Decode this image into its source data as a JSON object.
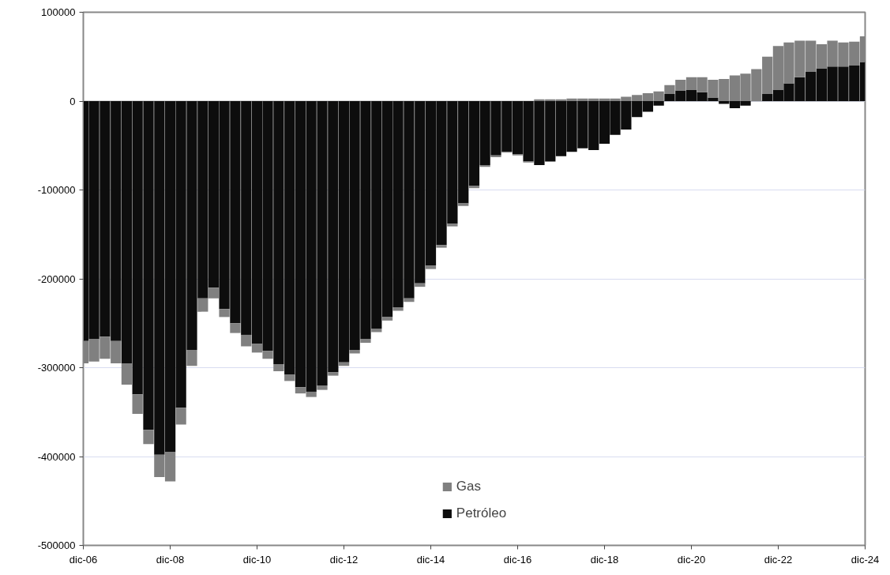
{
  "chart_data": {
    "type": "bar",
    "stacked": true,
    "grid": "y",
    "legend": "bottom",
    "x": [
      "2006-12",
      "2007-03",
      "2007-06",
      "2007-09",
      "2007-12",
      "2008-03",
      "2008-06",
      "2008-09",
      "2008-12",
      "2009-03",
      "2009-06",
      "2009-09",
      "2009-12",
      "2010-03",
      "2010-06",
      "2010-09",
      "2010-12",
      "2011-03",
      "2011-06",
      "2011-09",
      "2011-12",
      "2012-03",
      "2012-06",
      "2012-09",
      "2012-12",
      "2013-03",
      "2013-06",
      "2013-09",
      "2013-12",
      "2014-03",
      "2014-06",
      "2014-09",
      "2014-12",
      "2015-03",
      "2015-06",
      "2015-09",
      "2015-12",
      "2016-03",
      "2016-06",
      "2016-09",
      "2016-12",
      "2017-03",
      "2017-06",
      "2017-09",
      "2017-12",
      "2018-03",
      "2018-06",
      "2018-09",
      "2018-12",
      "2019-03",
      "2019-06",
      "2019-09",
      "2019-12",
      "2020-03",
      "2020-06",
      "2020-09",
      "2020-12",
      "2021-03",
      "2021-06",
      "2021-09",
      "2021-12",
      "2022-03",
      "2022-06",
      "2022-09",
      "2022-12",
      "2023-03",
      "2023-06",
      "2023-09",
      "2023-12",
      "2024-03",
      "2024-06",
      "2024-09",
      "2024-12"
    ],
    "series": [
      {
        "name": "Petróleo",
        "color": "#0d0d0d",
        "values": [
          -270000,
          -268000,
          -265000,
          -270000,
          -295000,
          -330000,
          -370000,
          -398000,
          -395000,
          -345000,
          -280000,
          -222000,
          -210000,
          -234000,
          -250000,
          -263000,
          -273000,
          -281000,
          -296000,
          -308000,
          -322000,
          -327000,
          -320000,
          -305000,
          -294000,
          -280000,
          -268000,
          -256000,
          -243000,
          -232000,
          -222000,
          -205000,
          -185000,
          -162000,
          -138000,
          -115000,
          -95000,
          -72000,
          -61000,
          -57000,
          -60000,
          -68000,
          -72000,
          -68000,
          -62000,
          -57000,
          -53000,
          -55000,
          -48000,
          -38000,
          -32000,
          -18000,
          -12000,
          -5000,
          8000,
          12000,
          13000,
          10000,
          4000,
          -3000,
          -8000,
          -5000,
          0,
          8000,
          13000,
          20000,
          27000,
          33000,
          37000,
          39000,
          39000,
          40000,
          44000
        ]
      },
      {
        "name": "Gas",
        "color": "#808080",
        "values": [
          -25000,
          -25000,
          -25000,
          -25000,
          -24000,
          -22000,
          -16000,
          -25000,
          -33000,
          -19000,
          -18000,
          -15000,
          -12000,
          -9000,
          -11000,
          -13000,
          -10000,
          -9000,
          -8000,
          -7000,
          -7000,
          -6000,
          -5000,
          -4000,
          -4000,
          -4000,
          -4000,
          -4000,
          -4000,
          -4000,
          -4000,
          -4000,
          -4000,
          -3000,
          -3000,
          -3000,
          -3000,
          -2000,
          -2000,
          -1000,
          -1000,
          -1000,
          2000,
          2000,
          2000,
          3000,
          3000,
          3000,
          3000,
          3000,
          5000,
          7000,
          9000,
          11000,
          10000,
          12000,
          14000,
          17000,
          20000,
          25000,
          29000,
          31000,
          36000,
          42000,
          49000,
          46000,
          41000,
          35000,
          27000,
          29000,
          27000,
          27000,
          29000
        ]
      }
    ],
    "xlim": [
      "2006-12",
      "2024-12"
    ],
    "xticks": [
      {
        "value": "2006-12",
        "label": "dic-06"
      },
      {
        "value": "2008-12",
        "label": "dic-08"
      },
      {
        "value": "2010-12",
        "label": "dic-10"
      },
      {
        "value": "2012-12",
        "label": "dic-12"
      },
      {
        "value": "2014-12",
        "label": "dic-14"
      },
      {
        "value": "2016-12",
        "label": "dic-16"
      },
      {
        "value": "2018-12",
        "label": "dic-18"
      },
      {
        "value": "2020-12",
        "label": "dic-20"
      },
      {
        "value": "2022-12",
        "label": "dic-22"
      },
      {
        "value": "2024-12",
        "label": "dic-24"
      }
    ],
    "ylim": [
      -500000,
      100000
    ],
    "yticks": [
      -500000,
      -400000,
      -300000,
      -200000,
      -100000,
      0,
      100000
    ]
  }
}
